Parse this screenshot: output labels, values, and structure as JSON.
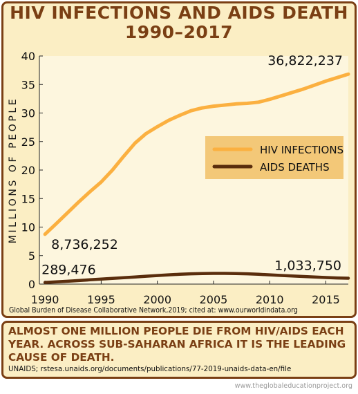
{
  "title": {
    "line1": "HIV INFECTIONS AND AIDS DEATH",
    "line2": "1990–2017"
  },
  "source_chart": "Global Burden of Disease Collaborative Network,2019; cited at: www.ourworldindata.org",
  "headline": "ALMOST ONE MILLION PEOPLE DIE FROM HIV/AIDS EACH YEAR. ACROSS SUB-SAHARAN AFRICA IT IS THE LEADING CAUSE OF DEATH.",
  "source_headline": "UNAIDS; rstesa.unaids.org/documents/publications/77-2019-unaids-data-en/file",
  "footer": "www.theglobaleducationproject.org",
  "colors": {
    "hiv": "#fbb040",
    "aids": "#5a2d0c",
    "brand": "#7a3f14",
    "panel": "#fbeec4",
    "plot_bg": "#fdf6de",
    "legend_bg": "#f3c878"
  },
  "chart_data": {
    "type": "line",
    "ylabel": "MILLIONS OF PEOPLE",
    "xlabel": "",
    "xlim": [
      1989.5,
      2017
    ],
    "ylim": [
      0,
      40
    ],
    "xticks": [
      1990,
      1995,
      2000,
      2005,
      2010,
      2015
    ],
    "yticks": [
      0,
      5,
      10,
      15,
      20,
      25,
      30,
      35,
      40
    ],
    "grid": false,
    "legend_position": "right",
    "series": [
      {
        "name": "HIV INFECTIONS",
        "color": "#fbb040",
        "x": [
          1990,
          1991,
          1992,
          1993,
          1994,
          1995,
          1996,
          1997,
          1998,
          1999,
          2000,
          2001,
          2002,
          2003,
          2004,
          2005,
          2006,
          2007,
          2008,
          2009,
          2010,
          2011,
          2012,
          2013,
          2014,
          2015,
          2016,
          2017
        ],
        "values": [
          8.74,
          10.6,
          12.5,
          14.4,
          16.2,
          17.9,
          20.0,
          22.4,
          24.7,
          26.4,
          27.6,
          28.7,
          29.6,
          30.4,
          30.9,
          31.2,
          31.4,
          31.6,
          31.7,
          31.9,
          32.4,
          33.0,
          33.6,
          34.2,
          34.9,
          35.6,
          36.2,
          36.82
        ]
      },
      {
        "name": "AIDS DEATHS",
        "color": "#5a2d0c",
        "x": [
          1990,
          1991,
          1992,
          1993,
          1994,
          1995,
          1996,
          1997,
          1998,
          1999,
          2000,
          2001,
          2002,
          2003,
          2004,
          2005,
          2006,
          2007,
          2008,
          2009,
          2010,
          2011,
          2012,
          2013,
          2014,
          2015,
          2016,
          2017
        ],
        "values": [
          0.29,
          0.4,
          0.5,
          0.62,
          0.75,
          0.88,
          1.0,
          1.12,
          1.25,
          1.38,
          1.5,
          1.62,
          1.72,
          1.8,
          1.85,
          1.88,
          1.88,
          1.85,
          1.8,
          1.72,
          1.62,
          1.52,
          1.42,
          1.33,
          1.24,
          1.15,
          1.08,
          1.03
        ]
      }
    ],
    "annotations": [
      {
        "text": "36,822,237",
        "x": 2017,
        "y": 36.82
      },
      {
        "text": "8,736,252",
        "x": 1990,
        "y": 8.74
      },
      {
        "text": "289,476",
        "x": 1990,
        "y": 0.29
      },
      {
        "text": "1,033,750",
        "x": 2017,
        "y": 1.03
      }
    ]
  }
}
